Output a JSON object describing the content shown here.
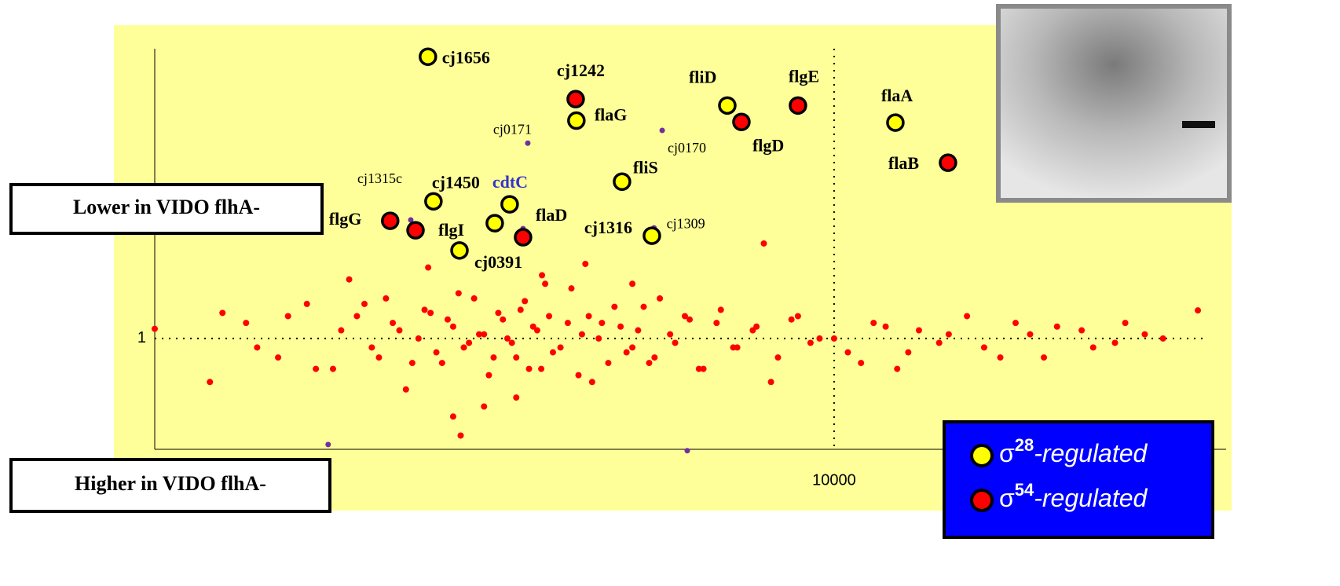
{
  "chart_data": {
    "type": "scatter",
    "xlog": true,
    "ylog": true,
    "xlim": [
      900,
      40000
    ],
    "ylim": [
      0.26,
      30
    ],
    "xticks": [
      10000
    ],
    "yticks": [
      1
    ],
    "grid": "dotted",
    "annotations": [
      "Lower in VIDO flhA-",
      "Higher in VIDO flhA-"
    ],
    "legend": [
      {
        "symbol": "σ",
        "superscript": "28",
        "text": "-regulated",
        "color": "#ffff00"
      },
      {
        "symbol": "σ",
        "superscript": "54",
        "text": "-regulated",
        "color": "#ff0000"
      }
    ],
    "series": [
      {
        "color": "#ff0000",
        "x": [
          1250,
          1400,
          1550,
          1700,
          1850,
          1950,
          2050,
          2150,
          2250,
          2350,
          2450,
          2550,
          2650,
          2750,
          2850,
          2950,
          3050,
          3150,
          3250,
          3350,
          3450,
          3550,
          3650,
          3800,
          3950,
          4100,
          4250,
          4400,
          4600,
          4800,
          5000,
          5200,
          5400,
          5700,
          6000,
          6300,
          6700,
          7100,
          7600,
          8200,
          8800,
          9500,
          10500,
          11500,
          12500,
          13500,
          14500,
          16000,
          18000,
          20000,
          22000,
          25000,
          28000,
          32000,
          36200,
          905,
          1300,
          1450,
          1600,
          1750,
          1900,
          2000,
          2100,
          2200,
          2300,
          2400,
          2500,
          2600,
          2700,
          2800,
          2900,
          3000,
          3100,
          3200,
          3300,
          3400,
          3500,
          3600,
          3700,
          3900,
          4050,
          4200,
          4350,
          4500,
          4700,
          4900,
          5100,
          5300,
          5600,
          5900,
          6200,
          6600,
          7000,
          7500,
          8000,
          8600,
          9200,
          10000,
          11000,
          12000,
          13000,
          15000,
          17000,
          19000,
          21000,
          24000,
          27000,
          30000,
          2670,
          7800,
          1100,
          1150,
          2380,
          3560,
          4150,
          4900,
          2900,
          3250,
          1800,
          2600
        ],
        "y": [
          1.2,
          0.8,
          1.5,
          0.7,
          1.3,
          0.9,
          1.6,
          1.1,
          0.75,
          1.4,
          0.85,
          1.25,
          1.7,
          0.95,
          1.05,
          0.65,
          1.35,
          1.0,
          0.8,
          1.55,
          1.15,
          0.7,
          1.3,
          0.9,
          1.8,
          1.05,
          0.6,
          1.2,
          1.45,
          0.85,
          1.1,
          0.75,
          1.6,
          0.95,
          1.25,
          0.7,
          1.4,
          0.9,
          1.15,
          0.8,
          1.3,
          1.0,
          0.85,
          1.2,
          0.7,
          1.1,
          0.95,
          1.3,
          0.8,
          1.05,
          1.15,
          0.9,
          1.2,
          1.0,
          1.39,
          1.12,
          0.9,
          1.3,
          0.7,
          1.1,
          1.5,
          0.8,
          1.2,
          0.55,
          1.0,
          1.35,
          0.75,
          1.15,
          0.9,
          1.6,
          1.05,
          0.8,
          1.25,
          0.95,
          1.4,
          0.7,
          1.1,
          1.9,
          0.85,
          1.2,
          0.65,
          1.3,
          1.0,
          0.75,
          1.15,
          0.9,
          1.45,
          0.8,
          1.05,
          1.3,
          0.7,
          1.2,
          0.9,
          1.1,
          0.6,
          1.25,
          0.95,
          1.0,
          0.75,
          1.15,
          0.85,
          1.05,
          0.9,
          1.2,
          0.8,
          1.1,
          0.95,
          1.05,
          0.32,
          3.05,
          0.6,
          1.35,
          2.3,
          2.1,
          2.4,
          1.9,
          0.45,
          0.5,
          2.0,
          0.4
        ]
      },
      {
        "color": "#7030a0",
        "x": [
          3385,
          5445,
          5290,
          2238,
          1671,
          5950,
          3329
        ],
        "y": [
          9.9,
          11.5,
          3.66,
          4.02,
          0.288,
          0.268,
          3.63
        ],
        "labels": [
          "cj0171",
          "cj0170",
          "cj1309",
          "cj1315c",
          null,
          null,
          null
        ]
      },
      {
        "color": "#ffff00",
        "x": [
          2378,
          6855,
          4020,
          12420,
          4724,
          2425,
          3175,
          3012,
          5250,
          2659
        ],
        "y": [
          27.3,
          15.4,
          12.9,
          12.6,
          6.3,
          5.0,
          4.83,
          3.87,
          3.34,
          2.81
        ],
        "labels": [
          "cj1656",
          "fliD",
          "flaG",
          "flaA",
          "fliS",
          "cj1450",
          "cdtC",
          null,
          "cj1316",
          "cj0391"
        ]
      },
      {
        "color": "#ff0000",
        "x": [
          4010,
          8800,
          7206,
          14960,
          2081,
          2276,
          3329
        ],
        "y": [
          16.6,
          15.4,
          12.7,
          7.87,
          3.98,
          3.56,
          3.28
        ],
        "labels": [
          "cj1242",
          "flgE",
          "flgD",
          "flaB",
          "flgG",
          "flgI",
          "flaD"
        ]
      }
    ]
  }
}
